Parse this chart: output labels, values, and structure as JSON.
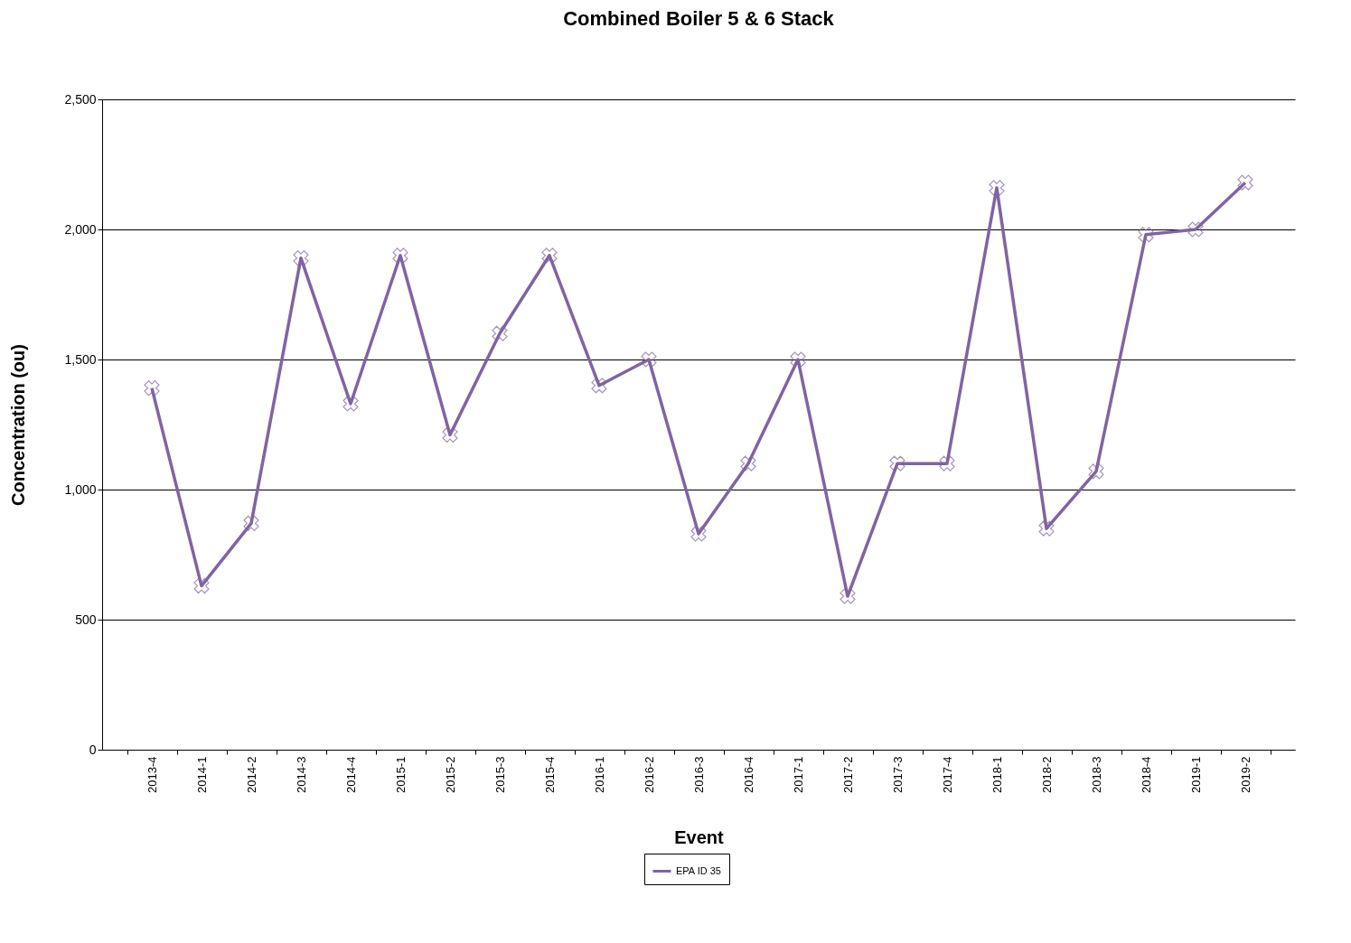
{
  "chart_data": {
    "type": "line",
    "title": "Combined Boiler 5 & 6 Stack",
    "xlabel": "Event",
    "ylabel": "Concentration (ou)",
    "categories": [
      "2013-4",
      "2014-1",
      "2014-2",
      "2014-3",
      "2014-4",
      "2015-1",
      "2015-2",
      "2015-3",
      "2015-4",
      "2016-1",
      "2016-2",
      "2016-3",
      "2016-4",
      "2017-1",
      "2017-2",
      "2017-3",
      "2017-4",
      "2018-1",
      "2018-2",
      "2018-3",
      "2018-4",
      "2019-1",
      "2019-2"
    ],
    "series": [
      {
        "name": "EPA ID 35",
        "color": "#8064a2",
        "values": [
          1390,
          630,
          870,
          1890,
          1330,
          1900,
          1210,
          1600,
          1900,
          1400,
          1500,
          830,
          1100,
          1500,
          590,
          1100,
          1100,
          2160,
          850,
          1070,
          1980,
          2000,
          2180
        ]
      }
    ],
    "ylim": [
      0,
      2500
    ],
    "yticks": [
      0,
      500,
      {
        "value": 1000,
        "label": "1,000"
      },
      {
        "value": 1500,
        "label": "1,500"
      },
      {
        "value": 2000,
        "label": "2,000"
      },
      {
        "value": 2500,
        "label": "2,500"
      }
    ],
    "grid": "y",
    "legend": "bottom",
    "marker": "cross",
    "line_style": "solid"
  }
}
